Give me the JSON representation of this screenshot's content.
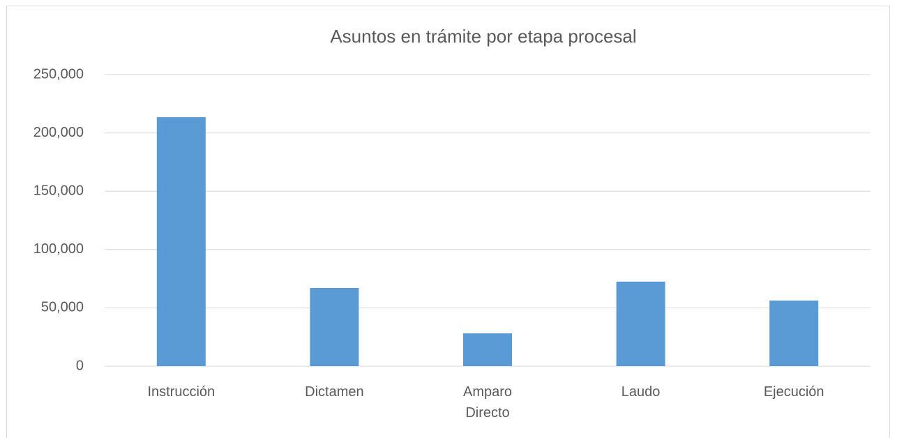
{
  "chart_data": {
    "type": "bar",
    "title": "Asuntos en trámite por etapa procesal",
    "categories": [
      "Instrucción",
      "Dictamen",
      "Amparo Directo",
      "Laudo",
      "Ejecución"
    ],
    "values": [
      213500,
      67000,
      28200,
      72500,
      56300
    ],
    "color": "#5b9bd5",
    "ylim": [
      0,
      250000
    ],
    "yticks": [
      0,
      {
        "value": 50000,
        "label": "50,000"
      },
      {
        "value": 100000,
        "label": "100,000"
      },
      {
        "value": 150000,
        "label": "150,000"
      },
      {
        "value": 200000,
        "label": "200,000"
      },
      {
        "value": 250000,
        "label": "250,000"
      }
    ],
    "grid": true
  }
}
